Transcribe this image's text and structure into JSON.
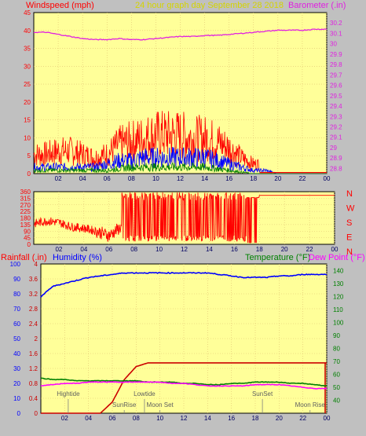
{
  "charts": {
    "top": {
      "title": "24 hour graph day   September 28 2018",
      "left_label": "Windspeed (mph)",
      "right_label": "Barometer (.in)",
      "left_ticks": [
        "0",
        "5",
        "10",
        "15",
        "20",
        "25",
        "30",
        "35",
        "40",
        "45"
      ],
      "right_ticks": [
        "28.8",
        "28.9",
        "29",
        "29.1",
        "29.2",
        "29.3",
        "29.4",
        "29.5",
        "29.6",
        "29.7",
        "29.8",
        "29.9",
        "30",
        "30.1",
        "30.2"
      ],
      "x_ticks": [
        "02",
        "04",
        "06",
        "08",
        "10",
        "12",
        "14",
        "16",
        "18",
        "20",
        "22",
        "00"
      ]
    },
    "middle": {
      "left_ticks": [
        "0",
        "45",
        "90",
        "135",
        "180",
        "225",
        "270",
        "315",
        "360"
      ],
      "compass": [
        "N",
        "W",
        "S",
        "E",
        "N"
      ],
      "x_ticks": [
        "02",
        "04",
        "06",
        "08",
        "10",
        "12",
        "14",
        "16",
        "18",
        "20",
        "22",
        "00"
      ]
    },
    "bottom": {
      "rain_label": "Rainfall (.in)",
      "hum_label": "Humidity (%)",
      "temp_label": "Temperature (°F)",
      "dew_label": "Dew Point (°F)",
      "rain_ticks": [
        "0",
        "0.4",
        "0.8",
        "1.2",
        "1.6",
        "2",
        "2.4",
        "2.8",
        "3.2",
        "3.6",
        "4"
      ],
      "hum_ticks": [
        "0",
        "10",
        "20",
        "30",
        "40",
        "50",
        "60",
        "70",
        "80",
        "90",
        "100"
      ],
      "temp_ticks": [
        "40",
        "50",
        "60",
        "70",
        "80",
        "90",
        "100",
        "110",
        "120",
        "130",
        "140"
      ],
      "x_ticks": [
        "02",
        "04",
        "06",
        "08",
        "10",
        "12",
        "14",
        "16",
        "18",
        "20",
        "22",
        "00"
      ],
      "events": [
        {
          "label": "Hightide",
          "hour": 2.3
        },
        {
          "label": "SunRise",
          "hour": 7.0
        },
        {
          "label": "Lowtide",
          "hour": 8.7
        },
        {
          "label": "Moon Set",
          "hour": 10.0
        },
        {
          "label": "SunSet",
          "hour": 18.6
        },
        {
          "label": "Moon Rise",
          "hour": 22.6
        }
      ]
    }
  },
  "colors": {
    "plot_bg": "#ffff99",
    "frame_bg": "#c0c0c0",
    "wind": "#ff0000",
    "wind_avg": "#0000ff",
    "wind_low": "#008000",
    "barometer": "#e020e0",
    "title": "#d4d400",
    "humidity": "#0000ff",
    "temperature": "#008000",
    "dewpoint": "#ff00ff",
    "rain": "#cc0000"
  },
  "chart_data": [
    {
      "type": "line",
      "title": "24 hour graph day   September 28 2018",
      "xlabel": "",
      "ylabel": "Windspeed (mph)",
      "y2label": "Barometer (.in)",
      "ylim": [
        0,
        45
      ],
      "y2lim": [
        28.8,
        30.2
      ],
      "x_hours": [
        0,
        1,
        2,
        3,
        4,
        5,
        6,
        7,
        8,
        9,
        10,
        11,
        12,
        13,
        14,
        15,
        16,
        17,
        18,
        19,
        20,
        21,
        22,
        23,
        24
      ],
      "series": [
        {
          "name": "Windspeed (mph)",
          "axis": "left",
          "values": [
            6,
            6,
            7,
            7,
            6,
            5,
            6,
            9,
            10,
            11,
            12,
            12,
            12,
            11,
            11,
            10,
            8,
            5,
            3,
            3,
            2,
            1,
            1,
            1,
            0
          ]
        },
        {
          "name": "",
          "axis": "left",
          "values": [
            2,
            2,
            2,
            2,
            2,
            2,
            3,
            4,
            4,
            5,
            5,
            5,
            5,
            5,
            5,
            4,
            3,
            2,
            1,
            1,
            0,
            0,
            0,
            0,
            0
          ]
        },
        {
          "name": "",
          "axis": "left",
          "values": [
            1,
            1,
            1,
            1,
            1,
            1,
            1,
            1.5,
            2,
            2,
            2,
            2,
            2,
            2,
            2,
            1.5,
            1,
            0.5,
            0,
            0,
            0,
            0,
            0,
            0,
            0
          ]
        },
        {
          "name": "Barometer (.in)",
          "axis": "right",
          "values": [
            30.11,
            30.11,
            30.09,
            30.07,
            30.05,
            30.04,
            30.04,
            30.05,
            30.04,
            30.04,
            30.05,
            30.06,
            30.07,
            30.07,
            30.08,
            30.08,
            30.09,
            30.1,
            30.11,
            30.12,
            30.13,
            30.13,
            30.13,
            30.14,
            30.14
          ]
        }
      ]
    },
    {
      "type": "line",
      "title": "",
      "ylabel": "",
      "ylim": [
        0,
        360
      ],
      "x_hours": [
        0,
        1,
        2,
        3,
        4,
        5,
        6,
        7,
        8,
        9,
        10,
        11,
        12,
        13,
        14,
        15,
        16,
        17,
        18,
        19,
        20,
        21,
        22,
        23,
        24
      ],
      "series": [
        {
          "name": "",
          "values": [
            140,
            160,
            150,
            120,
            110,
            90,
            60,
            120,
            110,
            130,
            180,
            220,
            200,
            240,
            210,
            180,
            130,
            300,
            320,
            335,
            335,
            335,
            335,
            335,
            335
          ]
        }
      ]
    },
    {
      "type": "line",
      "title": "",
      "ylabel": "Rainfall (.in)",
      "y2label": "Temperature (°F)",
      "ylim": [
        0,
        4
      ],
      "y2lim": [
        30,
        145
      ],
      "x_hours": [
        0,
        1,
        2,
        3,
        4,
        5,
        6,
        7,
        8,
        9,
        10,
        11,
        12,
        13,
        14,
        15,
        16,
        17,
        18,
        19,
        20,
        21,
        22,
        23,
        24
      ],
      "series": [
        {
          "name": "Rainfall (.in)",
          "axis": "rain",
          "values": [
            0,
            0,
            0,
            0,
            0,
            0,
            0.3,
            0.9,
            1.25,
            1.35,
            1.35,
            1.35,
            1.35,
            1.35,
            1.35,
            1.35,
            1.35,
            1.35,
            1.35,
            1.35,
            1.35,
            1.35,
            1.35,
            1.35,
            1.35
          ]
        },
        {
          "name": "Humidity (%)",
          "axis": "humidity",
          "values": [
            78,
            85,
            87,
            89,
            91,
            92,
            93,
            94,
            94,
            94,
            94,
            94,
            94,
            94,
            94,
            93,
            92,
            91,
            91,
            91,
            92,
            92,
            93,
            93,
            93
          ]
        },
        {
          "name": "Temperature (°F)",
          "axis": "temp",
          "values": [
            57,
            56,
            56,
            55,
            55,
            55,
            55,
            55,
            55,
            54,
            54,
            54,
            53,
            53,
            52,
            52,
            53,
            53,
            54,
            54,
            54,
            53,
            53,
            52,
            51
          ]
        },
        {
          "name": "Dew Point (°F)",
          "axis": "temp",
          "values": [
            51,
            52,
            53,
            53,
            54,
            54,
            54,
            54,
            54,
            54,
            54,
            53,
            53,
            52,
            51,
            51,
            51,
            51,
            52,
            52,
            52,
            51,
            50,
            49,
            49
          ]
        }
      ]
    }
  ]
}
